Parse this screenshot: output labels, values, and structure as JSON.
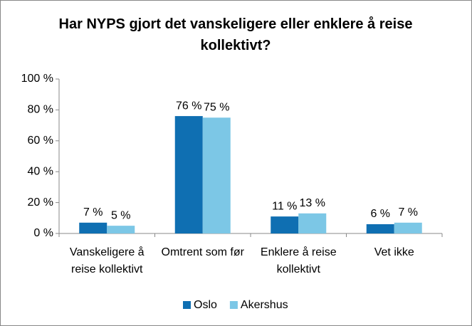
{
  "chart_data": {
    "type": "bar",
    "title": "Har NYPS gjort det vanskeligere eller enklere å reise kollektivt?",
    "categories": [
      "Vanskeligere å reise kollektivt",
      "Omtrent som før",
      "Enklere å reise kollektivt",
      "Vet ikke"
    ],
    "series": [
      {
        "name": "Oslo",
        "color": "#0f6fb2",
        "values": [
          7,
          76,
          11,
          6
        ],
        "value_labels": [
          "7 %",
          "76 %",
          "11 %",
          "6 %"
        ]
      },
      {
        "name": "Akershus",
        "color": "#7cc7e6",
        "values": [
          5,
          75,
          13,
          7
        ],
        "value_labels": [
          "5 %",
          "75 %",
          "13 %",
          "7 %"
        ]
      }
    ],
    "ylim": [
      0,
      100
    ],
    "yticks": [
      {
        "value": 0,
        "label": "0 %"
      },
      {
        "value": 20,
        "label": "20 %"
      },
      {
        "value": 40,
        "label": "40 %"
      },
      {
        "value": 60,
        "label": "60 %"
      },
      {
        "value": 80,
        "label": "80 %"
      },
      {
        "value": 100,
        "label": "100 %"
      }
    ],
    "grid": false,
    "legend": "bottom"
  }
}
